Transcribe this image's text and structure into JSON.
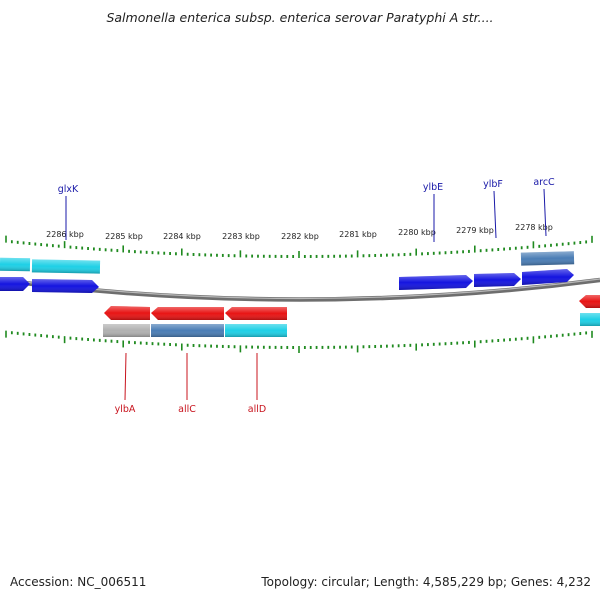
{
  "title": "Salmonella enterica subsp. enterica serovar Paratyphi A str....",
  "footer": {
    "accession": "Accession: NC_006511",
    "summary": "Topology: circular; Length: 4,585,229 bp; Genes: 4,232"
  },
  "colors": {
    "forward_gene": "#1414e0",
    "reverse_gene": "#e81414",
    "cyan_feature": "#1ed0e6",
    "steel_feature": "#4a7db5",
    "gray_feature": "#b0b0b0",
    "tick": "#1f8a1f",
    "backbone": "#6e6e6e",
    "top_label": "#1a1aa8",
    "bottom_label": "#c8141e"
  },
  "kbp_labels": [
    "2286 kbp",
    "2285 kbp",
    "2284 kbp",
    "2283 kbp",
    "2282 kbp",
    "2281 kbp",
    "2280 kbp",
    "2279 kbp",
    "2278 kbp"
  ],
  "top_gene_labels": [
    "glxK",
    "ylbE",
    "ylbF",
    "arcC"
  ],
  "bottom_gene_labels": [
    "ylbA",
    "allC",
    "allD"
  ]
}
